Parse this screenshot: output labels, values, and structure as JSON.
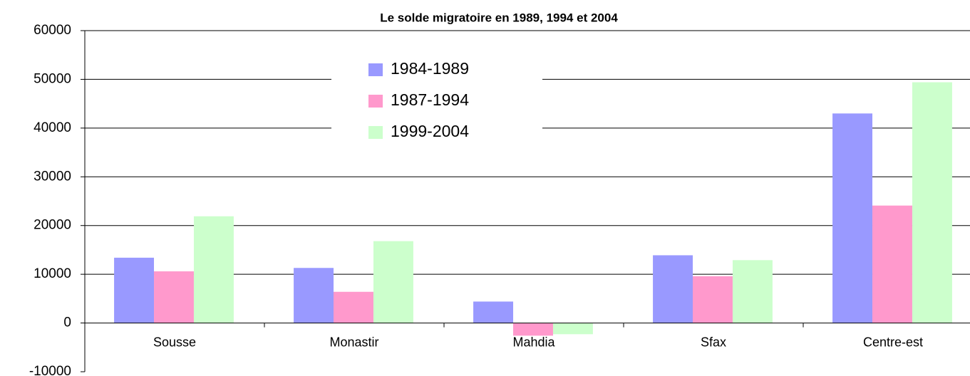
{
  "chart_data": {
    "type": "bar",
    "title": "Le solde migratoire en 1989, 1994 et 2004",
    "categories": [
      "Sousse",
      "Monastir",
      "Mahdia",
      "Sfax",
      "Centre-est"
    ],
    "series": [
      {
        "name": "1984-1989",
        "color": "#9999ff",
        "values": [
          13400,
          11300,
          4400,
          13900,
          43000
        ]
      },
      {
        "name": "1987-1994",
        "color": "#ff99cc",
        "values": [
          10600,
          6400,
          -2600,
          9600,
          24100
        ]
      },
      {
        "name": "1999-2004",
        "color": "#ccffcc",
        "values": [
          21900,
          16800,
          -2300,
          12900,
          49400
        ]
      }
    ],
    "ylim": [
      -10000,
      60000
    ],
    "yticks": [
      -10000,
      0,
      10000,
      20000,
      30000,
      40000,
      50000,
      60000
    ],
    "grid": true,
    "legend": "top"
  }
}
